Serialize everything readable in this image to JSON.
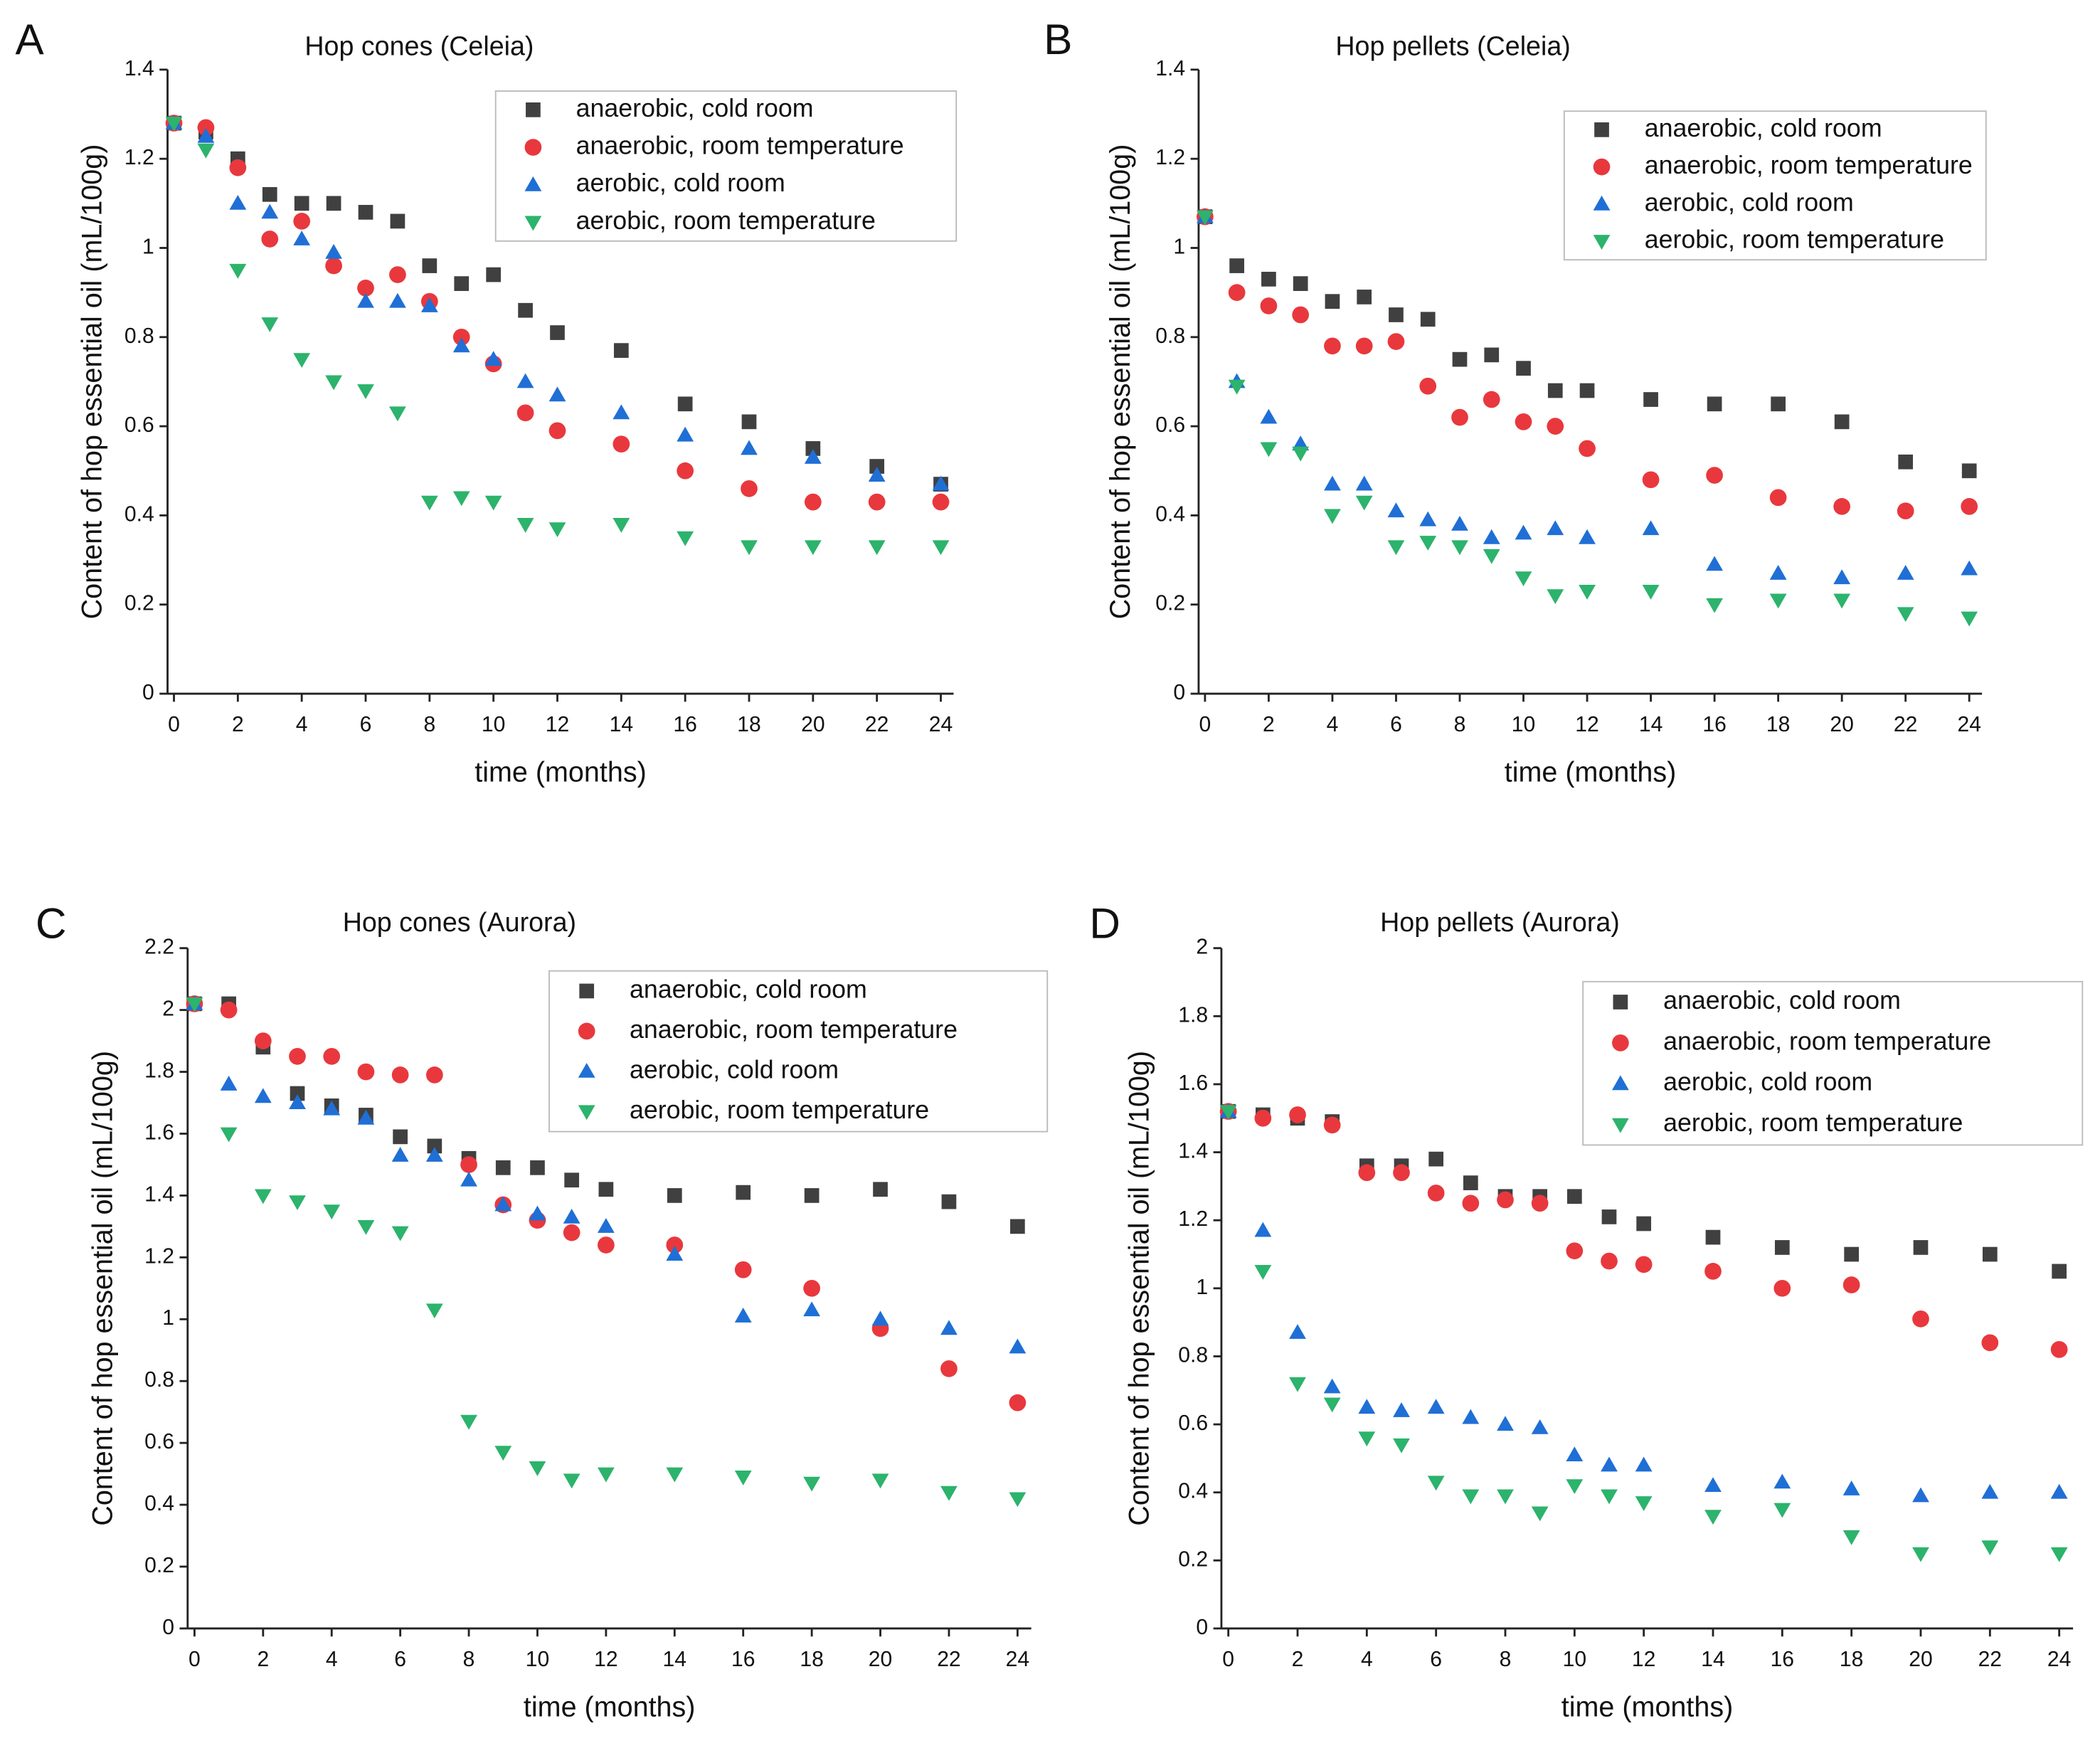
{
  "chart_data": [
    {
      "type": "scatter",
      "panel": "A",
      "title": "Hop cones (Celeia)",
      "xlabel": "time (months)",
      "ylabel": "Content of hop essential oil (mL/100g)",
      "x": [
        0,
        1,
        2,
        3,
        4,
        5,
        6,
        7,
        8,
        9,
        10,
        11,
        12,
        14,
        16,
        18,
        20,
        22,
        24
      ],
      "xlim": [
        -0.2,
        24.4
      ],
      "xticks": [
        0,
        2,
        4,
        6,
        8,
        10,
        12,
        14,
        16,
        18,
        20,
        22,
        24
      ],
      "ylim": [
        0,
        1.4
      ],
      "yticks": [
        0,
        0.2,
        0.4,
        0.6,
        0.8,
        1,
        1.2,
        1.4
      ],
      "legend": "upper right",
      "series": [
        {
          "name": "anaerobic, cold room",
          "color": "#404040",
          "marker": "square",
          "values": [
            1.28,
            1.26,
            1.2,
            1.12,
            1.1,
            1.1,
            1.08,
            1.06,
            0.96,
            0.92,
            0.94,
            0.86,
            0.81,
            0.77,
            0.65,
            0.61,
            0.55,
            0.51,
            0.47
          ]
        },
        {
          "name": "anaerobic, room temperature",
          "color": "#e8383d",
          "marker": "circle",
          "values": [
            1.28,
            1.27,
            1.18,
            1.02,
            1.06,
            0.96,
            0.91,
            0.94,
            0.88,
            0.8,
            0.74,
            0.63,
            0.59,
            0.56,
            0.5,
            0.46,
            0.43,
            0.43,
            0.43
          ]
        },
        {
          "name": "aerobic, cold room",
          "color": "#1f6fd6",
          "marker": "triangle-up",
          "values": [
            1.28,
            1.25,
            1.1,
            1.08,
            1.02,
            0.99,
            0.88,
            0.88,
            0.87,
            0.78,
            0.75,
            0.7,
            0.67,
            0.63,
            0.58,
            0.55,
            0.53,
            0.49,
            0.47
          ]
        },
        {
          "name": "aerobic, room temperature",
          "color": "#2cb36c",
          "marker": "triangle-down",
          "values": [
            1.28,
            1.22,
            0.95,
            0.83,
            0.75,
            0.7,
            0.68,
            0.63,
            0.43,
            0.44,
            0.43,
            0.38,
            0.37,
            0.38,
            0.35,
            0.33,
            0.33,
            0.33,
            0.33
          ]
        }
      ]
    },
    {
      "type": "scatter",
      "panel": "B",
      "title": "Hop pellets (Celeia)",
      "xlabel": "time (months)",
      "ylabel": "Content of hop essential oil (mL/100g)",
      "x": [
        0,
        1,
        2,
        3,
        4,
        5,
        6,
        7,
        8,
        9,
        10,
        11,
        12,
        14,
        16,
        18,
        20,
        22,
        24
      ],
      "xlim": [
        -0.2,
        24.4
      ],
      "xticks": [
        0,
        2,
        4,
        6,
        8,
        10,
        12,
        14,
        16,
        18,
        20,
        22,
        24
      ],
      "ylim": [
        0,
        1.4
      ],
      "yticks": [
        0,
        0.2,
        0.4,
        0.6,
        0.8,
        1,
        1.2,
        1.4
      ],
      "legend": "upper right",
      "series": [
        {
          "name": "anaerobic, cold room",
          "color": "#404040",
          "marker": "square",
          "values": [
            1.07,
            0.96,
            0.93,
            0.92,
            0.88,
            0.89,
            0.85,
            0.84,
            0.75,
            0.76,
            0.73,
            0.68,
            0.68,
            0.66,
            0.65,
            0.65,
            0.61,
            0.52,
            0.5
          ]
        },
        {
          "name": "anaerobic, room temperature",
          "color": "#e8383d",
          "marker": "circle",
          "values": [
            1.07,
            0.9,
            0.87,
            0.85,
            0.78,
            0.78,
            0.79,
            0.69,
            0.62,
            0.66,
            0.61,
            0.6,
            0.55,
            0.48,
            0.49,
            0.44,
            0.42,
            0.41,
            0.42
          ]
        },
        {
          "name": "aerobic, cold room",
          "color": "#1f6fd6",
          "marker": "triangle-up",
          "values": [
            1.07,
            0.7,
            0.62,
            0.56,
            0.47,
            0.47,
            0.41,
            0.39,
            0.38,
            0.35,
            0.36,
            0.37,
            0.35,
            0.37,
            0.29,
            0.27,
            0.26,
            0.27,
            0.28
          ]
        },
        {
          "name": "aerobic, room temperature",
          "color": "#2cb36c",
          "marker": "triangle-down",
          "values": [
            1.07,
            0.69,
            0.55,
            0.54,
            0.4,
            0.43,
            0.33,
            0.34,
            0.33,
            0.31,
            0.26,
            0.22,
            0.23,
            0.23,
            0.2,
            0.21,
            0.21,
            0.18,
            0.17
          ]
        }
      ]
    },
    {
      "type": "scatter",
      "panel": "C",
      "title": "Hop cones (Aurora)",
      "xlabel": "time (months)",
      "ylabel": "Content of hop essential oil (mL/100g)",
      "x": [
        0,
        1,
        2,
        3,
        4,
        5,
        6,
        7,
        8,
        9,
        10,
        11,
        12,
        14,
        16,
        18,
        20,
        22,
        24
      ],
      "xlim": [
        -0.2,
        24.4
      ],
      "xticks": [
        0,
        2,
        4,
        6,
        8,
        10,
        12,
        14,
        16,
        18,
        20,
        22,
        24
      ],
      "ylim": [
        0,
        2.2
      ],
      "yticks": [
        0,
        0.2,
        0.4,
        0.6,
        0.8,
        1,
        1.2,
        1.4,
        1.6,
        1.8,
        2,
        2.2
      ],
      "legend": "upper right",
      "series": [
        {
          "name": "anaerobic, cold room",
          "color": "#404040",
          "marker": "square",
          "values": [
            2.02,
            2.02,
            1.88,
            1.73,
            1.69,
            1.66,
            1.59,
            1.56,
            1.52,
            1.49,
            1.49,
            1.45,
            1.42,
            1.4,
            1.41,
            1.4,
            1.42,
            1.38,
            1.3
          ]
        },
        {
          "name": "anaerobic, room temperature",
          "color": "#e8383d",
          "marker": "circle",
          "values": [
            2.02,
            2.0,
            1.9,
            1.85,
            1.85,
            1.8,
            1.79,
            1.79,
            1.5,
            1.37,
            1.32,
            1.28,
            1.24,
            1.24,
            1.16,
            1.1,
            0.97,
            0.84,
            0.73
          ]
        },
        {
          "name": "aerobic, cold room",
          "color": "#1f6fd6",
          "marker": "triangle-up",
          "values": [
            2.02,
            1.76,
            1.72,
            1.7,
            1.68,
            1.65,
            1.53,
            1.53,
            1.45,
            1.37,
            1.34,
            1.33,
            1.3,
            1.21,
            1.01,
            1.03,
            1.0,
            0.97,
            0.91
          ]
        },
        {
          "name": "aerobic, room temperature",
          "color": "#2cb36c",
          "marker": "triangle-down",
          "values": [
            2.02,
            1.6,
            1.4,
            1.38,
            1.35,
            1.3,
            1.28,
            1.03,
            0.67,
            0.57,
            0.52,
            0.48,
            0.5,
            0.5,
            0.49,
            0.47,
            0.48,
            0.44,
            0.42
          ]
        }
      ]
    },
    {
      "type": "scatter",
      "panel": "D",
      "title": "Hop pellets (Aurora)",
      "xlabel": "time (months)",
      "ylabel": "Content of hop essential oil (mL/100g)",
      "x": [
        0,
        1,
        2,
        3,
        4,
        5,
        6,
        7,
        8,
        9,
        10,
        11,
        12,
        14,
        16,
        18,
        20,
        22,
        24
      ],
      "xlim": [
        -0.2,
        24.4
      ],
      "xticks": [
        0,
        2,
        4,
        6,
        8,
        10,
        12,
        14,
        16,
        18,
        20,
        22,
        24
      ],
      "ylim": [
        0,
        2
      ],
      "yticks": [
        0,
        0.2,
        0.4,
        0.6,
        0.8,
        1,
        1.2,
        1.4,
        1.6,
        1.8,
        2
      ],
      "legend": "upper right",
      "series": [
        {
          "name": "anaerobic, cold room",
          "color": "#404040",
          "marker": "square",
          "values": [
            1.52,
            1.51,
            1.5,
            1.49,
            1.36,
            1.36,
            1.38,
            1.31,
            1.27,
            1.27,
            1.27,
            1.21,
            1.19,
            1.15,
            1.12,
            1.1,
            1.12,
            1.1,
            1.05
          ]
        },
        {
          "name": "anaerobic, room temperature",
          "color": "#e8383d",
          "marker": "circle",
          "values": [
            1.52,
            1.5,
            1.51,
            1.48,
            1.34,
            1.34,
            1.28,
            1.25,
            1.26,
            1.25,
            1.11,
            1.08,
            1.07,
            1.05,
            1.0,
            1.01,
            0.91,
            0.84,
            0.82
          ]
        },
        {
          "name": "aerobic, cold room",
          "color": "#1f6fd6",
          "marker": "triangle-up",
          "values": [
            1.52,
            1.17,
            0.87,
            0.71,
            0.65,
            0.64,
            0.65,
            0.62,
            0.6,
            0.59,
            0.51,
            0.48,
            0.48,
            0.42,
            0.43,
            0.41,
            0.39,
            0.4,
            0.4
          ]
        },
        {
          "name": "aerobic, room temperature",
          "color": "#2cb36c",
          "marker": "triangle-down",
          "values": [
            1.52,
            1.05,
            0.72,
            0.66,
            0.56,
            0.54,
            0.43,
            0.39,
            0.39,
            0.34,
            0.42,
            0.39,
            0.37,
            0.33,
            0.35,
            0.27,
            0.22,
            0.24,
            0.22
          ]
        }
      ]
    }
  ]
}
